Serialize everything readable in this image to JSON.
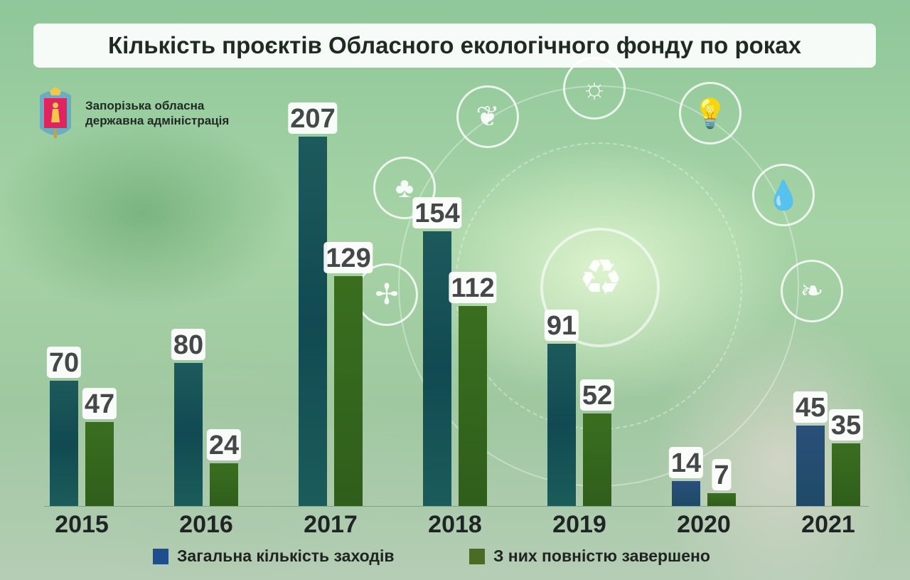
{
  "title": "Кількість проєктів Обласного екологічного фонду по роках",
  "organization": {
    "line1": "Запорізька обласна",
    "line2": "державна адміністрація"
  },
  "colors": {
    "total": "#1f4e8c",
    "completed": "#4a6b23",
    "total_bar": "#1a5a5a",
    "completed_bar": "#3b6e1f"
  },
  "chart_data": {
    "type": "bar",
    "title": "Кількість проєктів Обласного екологічного фонду по роках",
    "categories": [
      "2015",
      "2016",
      "2017",
      "2018",
      "2019",
      "2020",
      "2021"
    ],
    "series": [
      {
        "name": "Загальна кількість заходів",
        "values": [
          70,
          80,
          207,
          154,
          91,
          14,
          45
        ]
      },
      {
        "name": "З них повністю завершено",
        "values": [
          47,
          24,
          129,
          112,
          52,
          7,
          35
        ]
      }
    ],
    "ylim": [
      0,
      207
    ],
    "grid": false,
    "legend_position": "bottom-center",
    "xlabel": "",
    "ylabel": ""
  }
}
